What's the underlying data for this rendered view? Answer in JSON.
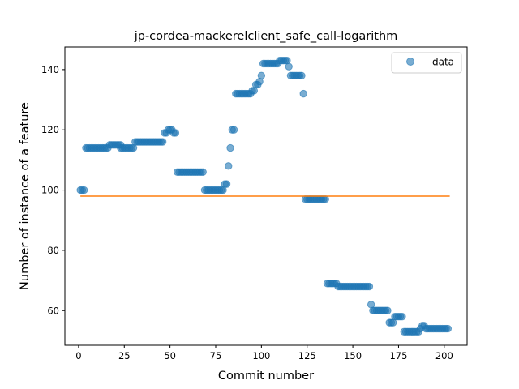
{
  "chart_data": {
    "type": "scatter",
    "title": "jp-cordea-mackerelclient_safe_call-logarithm",
    "xlabel": "Commit number",
    "ylabel": "Number of instance of a feature",
    "xlim": [
      -7.5,
      212.5
    ],
    "ylim": [
      48.5,
      147.5
    ],
    "xticks": [
      0,
      25,
      50,
      75,
      100,
      125,
      150,
      175,
      200
    ],
    "yticks": [
      60,
      80,
      100,
      120,
      140
    ],
    "legend": {
      "placement": "top-right",
      "entries": [
        "data"
      ]
    },
    "colors": {
      "data": "#1f77b4",
      "fit": "#ff7f0e"
    },
    "series": [
      {
        "name": "data",
        "kind": "scatter",
        "segments": [
          {
            "x": [
              1,
              3
            ],
            "y": 100
          },
          {
            "x": [
              4,
              16
            ],
            "y": 114
          },
          {
            "x": [
              17,
              23
            ],
            "y": 115
          },
          {
            "x": [
              23,
              30
            ],
            "y": 114
          },
          {
            "x": [
              31,
              46
            ],
            "y": 116
          },
          {
            "x": [
              47,
              48
            ],
            "y": 119
          },
          {
            "x": [
              49,
              51
            ],
            "y": 120
          },
          {
            "x": [
              52,
              53
            ],
            "y": 119
          },
          {
            "x": [
              54,
              68
            ],
            "y": 106
          },
          {
            "x": [
              69,
              79
            ],
            "y": 100
          },
          {
            "x": [
              80,
              81
            ],
            "y": 102
          },
          {
            "x": [
              82,
              82
            ],
            "y": 108
          },
          {
            "x": [
              83,
              83
            ],
            "y": 114
          },
          {
            "x": [
              84,
              85
            ],
            "y": 120
          },
          {
            "x": [
              86,
              94
            ],
            "y": 132
          },
          {
            "x": [
              95,
              96
            ],
            "y": 133
          },
          {
            "x": [
              97,
              98
            ],
            "y": 135
          },
          {
            "x": [
              99,
              99
            ],
            "y": 136
          },
          {
            "x": [
              100,
              100
            ],
            "y": 138
          },
          {
            "x": [
              101,
              109
            ],
            "y": 142
          },
          {
            "x": [
              110,
              114
            ],
            "y": 143
          },
          {
            "x": [
              115,
              115
            ],
            "y": 141
          },
          {
            "x": [
              116,
              122
            ],
            "y": 138
          },
          {
            "x": [
              123,
              123
            ],
            "y": 132
          },
          {
            "x": [
              124,
              135
            ],
            "y": 97
          },
          {
            "x": [
              136,
              141
            ],
            "y": 69
          },
          {
            "x": [
              142,
              159
            ],
            "y": 68
          },
          {
            "x": [
              160,
              160
            ],
            "y": 62
          },
          {
            "x": [
              161,
              169
            ],
            "y": 60
          },
          {
            "x": [
              170,
              172
            ],
            "y": 56
          },
          {
            "x": [
              173,
              177
            ],
            "y": 58
          },
          {
            "x": [
              178,
              186
            ],
            "y": 53
          },
          {
            "x": [
              187,
              187
            ],
            "y": 54
          },
          {
            "x": [
              188,
              189
            ],
            "y": 55
          },
          {
            "x": [
              190,
              202
            ],
            "y": 54
          }
        ]
      },
      {
        "name": "",
        "kind": "line",
        "x": [
          1,
          203
        ],
        "y": [
          98,
          98
        ]
      }
    ]
  }
}
